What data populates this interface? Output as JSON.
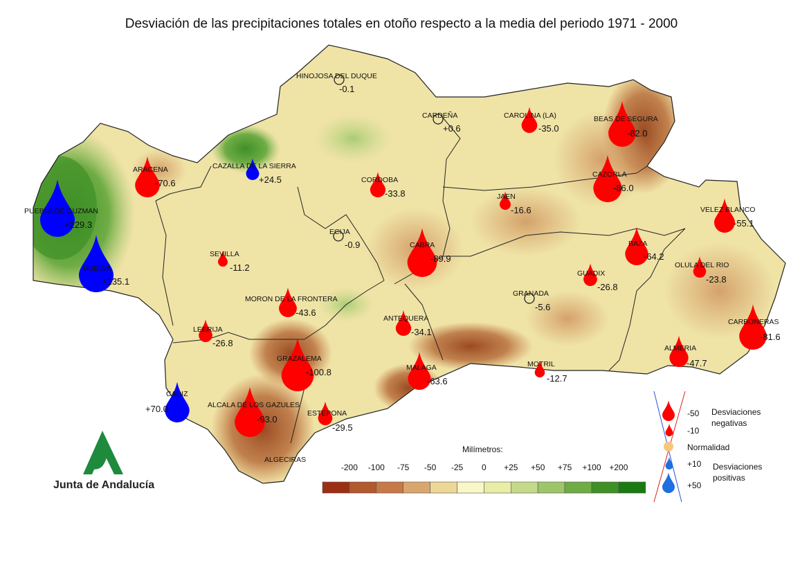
{
  "title": "Desviación de las precipitaciones totales en otoño respecto a la media del periodo 1971 - 2000",
  "colors": {
    "scale": [
      "#9b2f14",
      "#b2592d",
      "#c57a48",
      "#d9a66e",
      "#ecd796",
      "#f9f6c7",
      "#e8eda7",
      "#c5d98a",
      "#9dc56a",
      "#6fac45",
      "#3f9027",
      "#1a7a12"
    ],
    "negative_drop": "#ff0000",
    "positive_drop": "#0000ff",
    "normal": "#f5c77e"
  },
  "stations": [
    {
      "name": "HINOJOSA DEL DUQUE",
      "value": "-0.1",
      "dev": -0.1
    },
    {
      "name": "CARDEÑA",
      "value": "+0.6",
      "dev": 0.6
    },
    {
      "name": "CAROLINA (LA)",
      "value": "-35.0",
      "dev": -35.0
    },
    {
      "name": "BEAS DE SEGURA",
      "value": "-82.0",
      "dev": -82.0
    },
    {
      "name": "ARACENA",
      "value": "-70.6",
      "dev": -70.6
    },
    {
      "name": "CAZALLA DE LA SIERRA",
      "value": "+24.5",
      "dev": 24.5
    },
    {
      "name": "CORDOBA",
      "value": "-33.8",
      "dev": -33.8
    },
    {
      "name": "CAZORLA",
      "value": "-86.0",
      "dev": -86.0
    },
    {
      "name": "JAEN",
      "value": "-16.6",
      "dev": -16.6
    },
    {
      "name": "VELEZ BLANCO",
      "value": "-55.1",
      "dev": -55.1
    },
    {
      "name": "PUEBLA DE GUZMAN",
      "value": "+229.3",
      "dev": 229.3
    },
    {
      "name": "ECIJA",
      "value": "-0.9",
      "dev": -0.9
    },
    {
      "name": "CABRA",
      "value": "-89.9",
      "dev": -89.9
    },
    {
      "name": "BAZA",
      "value": "-64.2",
      "dev": -64.2
    },
    {
      "name": "SEVILLA",
      "value": "-11.2",
      "dev": -11.2
    },
    {
      "name": "OLULA DEL RIO",
      "value": "-23.8",
      "dev": -23.8
    },
    {
      "name": "HUELVA",
      "value": "+135.1",
      "dev": 135.1
    },
    {
      "name": "GUADIX",
      "value": "-26.8",
      "dev": -26.8
    },
    {
      "name": "GRANADA",
      "value": "-5.6",
      "dev": -5.6
    },
    {
      "name": "MORON DE LA FRONTERA",
      "value": "-43.6",
      "dev": -43.6
    },
    {
      "name": "ANTEQUERA",
      "value": "-34.1",
      "dev": -34.1
    },
    {
      "name": "CARBONERAS",
      "value": "-81.6",
      "dev": -81.6
    },
    {
      "name": "LEBRIJA",
      "value": "-26.8",
      "dev": -26.8
    },
    {
      "name": "GRAZALEMA",
      "value": "-100.8",
      "dev": -100.8
    },
    {
      "name": "ALMERIA",
      "value": "-47.7",
      "dev": -47.7
    },
    {
      "name": "MOTRIL",
      "value": "-12.7",
      "dev": -12.7
    },
    {
      "name": "MALAGA",
      "value": "-63.6",
      "dev": -63.6
    },
    {
      "name": "CADIZ",
      "value": "+70.0",
      "dev": 70.0
    },
    {
      "name": "ALCALA DE LOS GAZULES",
      "value": "-93.0",
      "dev": -93.0
    },
    {
      "name": "ESTEPONA",
      "value": "-29.5",
      "dev": -29.5
    },
    {
      "name": "ALGECIRAS",
      "value": "",
      "dev": null
    }
  ],
  "colorbar": {
    "title": "Milímetros:",
    "ticks": [
      "-200",
      "-100",
      "-75",
      "-50",
      "-25",
      "0",
      "+25",
      "+50",
      "+75",
      "+100",
      "+200"
    ]
  },
  "drop_legend": {
    "neg50": "-50",
    "neg10": "-10",
    "neg_label_1": "Desviaciones",
    "neg_label_2": "negativas",
    "normal_label": "Normalidad",
    "pos10": "+10",
    "pos50": "+50",
    "pos_label_1": "Desviaciones",
    "pos_label_2": "positivas"
  },
  "logo": {
    "text": "Junta de Andalucía"
  }
}
